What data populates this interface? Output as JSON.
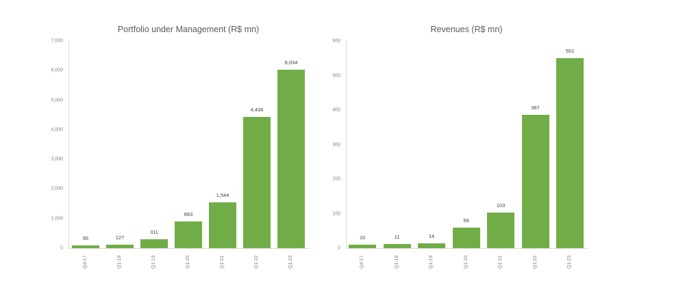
{
  "chart_data": [
    {
      "type": "bar",
      "title": "Portfolio under Management (R$ mn)",
      "categories": [
        "Q4-17",
        "Q1-18",
        "Q1-19",
        "Q1-20",
        "Q1-21",
        "Q1-22",
        "Q1-23"
      ],
      "values": [
        95,
        127,
        311,
        893,
        1544,
        4436,
        6034
      ],
      "data_labels": [
        "95",
        "127",
        "311",
        "893",
        "1,544",
        "4,436",
        "6,034"
      ],
      "xlabel": "",
      "ylabel": "",
      "ylim": [
        0,
        7000
      ],
      "yticks": [
        "0",
        "1,000",
        "2,000",
        "3,000",
        "4,000",
        "5,000",
        "6,000",
        "7,000"
      ],
      "grid": false,
      "color": "#70ad47"
    },
    {
      "type": "bar",
      "title": "Revenues (R$ mn)",
      "categories": [
        "Q4-17",
        "Q1-18",
        "Q1-19",
        "Q1-20",
        "Q1-21",
        "Q1-22",
        "Q1-23"
      ],
      "values": [
        10,
        11,
        14,
        59,
        103,
        387,
        551
      ],
      "data_labels": [
        "10",
        "11",
        "14",
        "59",
        "103",
        "387",
        "551"
      ],
      "xlabel": "",
      "ylabel": "",
      "ylim": [
        0,
        600
      ],
      "yticks": [
        "0",
        "100",
        "200",
        "300",
        "400",
        "500",
        "600"
      ],
      "grid": false,
      "color": "#70ad47"
    }
  ]
}
